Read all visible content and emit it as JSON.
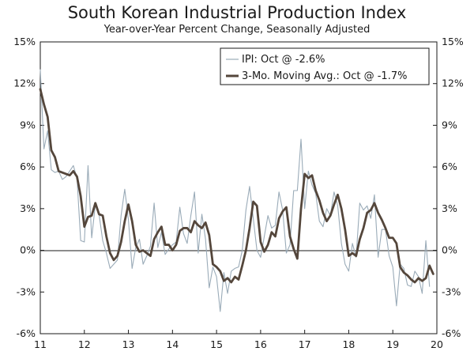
{
  "chart_data": {
    "type": "line",
    "title": "South Korean Industrial Production Index",
    "subtitle": "Year-over-Year Percent Change, Seasonally Adjusted",
    "xlabel": "",
    "ylabel": "",
    "xlim": [
      2011,
      2020
    ],
    "ylim": [
      -6,
      15
    ],
    "y_ticks": [
      -6,
      -3,
      0,
      3,
      6,
      9,
      12,
      15
    ],
    "y_tick_labels_left": [
      "-6%",
      "-3%",
      "0%",
      "3%",
      "6%",
      "9%",
      "12%",
      "15%"
    ],
    "y_tick_labels_right": [
      "-6%",
      "-3%",
      "0%",
      "3%",
      "6%",
      "9%",
      "12%",
      "15%"
    ],
    "x_ticks": [
      2011,
      2012,
      2013,
      2014,
      2015,
      2016,
      2017,
      2018,
      2019,
      2020
    ],
    "x_tick_labels": [
      "11",
      "12",
      "13",
      "14",
      "15",
      "16",
      "17",
      "18",
      "19",
      "20"
    ],
    "legend_position": "top-right",
    "series": [
      {
        "name": "IPI: Oct @ -2.6%",
        "color": "#9aabb8",
        "style": "thin",
        "start": 2011.0,
        "step": 0.0833333,
        "values": [
          13.0,
          7.3,
          8.6,
          5.8,
          5.6,
          5.7,
          5.1,
          5.3,
          5.7,
          6.1,
          5.2,
          0.7,
          0.6,
          6.1,
          0.9,
          3.3,
          2.6,
          0.7,
          -0.2,
          -1.3,
          -1.0,
          -0.7,
          2.5,
          4.4,
          2.2,
          -1.3,
          0.2,
          0.8,
          -1.0,
          -0.4,
          0.3,
          3.4,
          0.2,
          1.3,
          -0.3,
          0.1,
          0.4,
          0.6,
          3.1,
          1.2,
          0.5,
          2.5,
          4.2,
          -0.2,
          2.6,
          0.8,
          -2.7,
          -1.2,
          -1.9,
          -4.4,
          -1.6,
          -3.1,
          -1.5,
          -1.3,
          -1.2,
          0.0,
          2.9,
          4.6,
          2.3,
          0.0,
          -0.5,
          1.0,
          2.5,
          1.6,
          1.8,
          4.2,
          2.9,
          -0.2,
          0.4,
          4.3,
          4.3,
          8.0,
          3.0,
          5.7,
          4.7,
          4.1,
          2.1,
          1.7,
          3.0,
          2.5,
          4.2,
          3.2,
          0.5,
          -1.0,
          -1.5,
          0.5,
          -0.5,
          3.4,
          2.9,
          3.2,
          2.3,
          4.0,
          -0.5,
          1.5,
          1.5,
          -0.4,
          -1.2,
          -4.0,
          -1.0,
          -1.3,
          -2.5,
          -2.6,
          -1.5,
          -1.9,
          -3.1,
          0.7,
          -2.6
        ]
      },
      {
        "name": "3-Mo. Moving Avg.: Oct @ -1.7%",
        "color": "#54463b",
        "style": "thick",
        "start": 2011.0,
        "step": 0.0833333,
        "values": [
          11.6,
          10.5,
          9.6,
          7.2,
          6.7,
          5.7,
          5.6,
          5.5,
          5.4,
          5.7,
          5.3,
          3.9,
          1.7,
          2.4,
          2.5,
          3.4,
          2.6,
          2.5,
          1.0,
          -0.2,
          -0.7,
          -0.4,
          0.6,
          2.1,
          3.3,
          2.1,
          0.4,
          -0.1,
          0.0,
          -0.2,
          -0.4,
          0.8,
          1.3,
          1.7,
          0.4,
          0.4,
          0.0,
          0.4,
          1.4,
          1.6,
          1.6,
          1.3,
          2.1,
          1.8,
          1.6,
          2.0,
          1.1,
          -1.0,
          -1.2,
          -1.5,
          -2.2,
          -2.0,
          -2.3,
          -1.9,
          -2.1,
          -1.1,
          0.0,
          1.6,
          3.5,
          3.2,
          0.6,
          -0.1,
          0.4,
          1.3,
          1.0,
          2.3,
          2.8,
          3.1,
          1.0,
          0.1,
          -0.6,
          3.0,
          5.5,
          5.2,
          5.4,
          4.3,
          3.6,
          2.7,
          2.1,
          2.5,
          3.3,
          4.0,
          3.0,
          1.5,
          -0.4,
          -0.2,
          -0.4,
          0.8,
          1.6,
          2.7,
          2.9,
          3.4,
          2.7,
          2.2,
          1.6,
          0.9,
          0.9,
          0.5,
          -1.2,
          -1.6,
          -1.8,
          -2.1,
          -2.3,
          -2.0,
          -2.2,
          -2.0,
          -1.1,
          -1.7
        ]
      }
    ]
  }
}
